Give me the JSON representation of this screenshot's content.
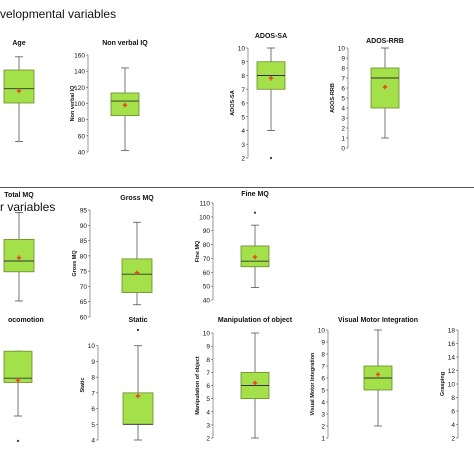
{
  "sections": [
    {
      "label": "velopmental variables"
    },
    {
      "label": "r variables"
    }
  ],
  "colors": {
    "box_fill": "#a4e04a",
    "box_stroke": "#6a8a2a",
    "mean_marker": "#e8402a",
    "text": "#111111",
    "axis": "#555555"
  },
  "chart_data": [
    {
      "type": "box",
      "title": "Age",
      "ylabel": "",
      "yticks": [],
      "ylim": [
        0,
        10
      ],
      "box": {
        "min": 1.5,
        "q1": 5.0,
        "median": 6.3,
        "q3": 8.0,
        "max": 9.2
      },
      "mean": 6.1,
      "outliers": []
    },
    {
      "type": "box",
      "title": "Non verbal IQ",
      "ylabel": "Non verbal IQ",
      "yticks": [
        40,
        60,
        80,
        100,
        120,
        140,
        160
      ],
      "ylim": [
        40,
        160
      ],
      "box": {
        "min": 42,
        "q1": 85,
        "median": 103,
        "q3": 113,
        "max": 144
      },
      "mean": 98,
      "outliers": []
    },
    {
      "type": "box",
      "title": "ADOS-SA",
      "ylabel": "ADOS-SA",
      "yticks": [
        2,
        3,
        4,
        5,
        6,
        7,
        8,
        9,
        10
      ],
      "ylim": [
        2,
        10
      ],
      "box": {
        "min": 4,
        "q1": 7,
        "median": 8,
        "q3": 9,
        "max": 10
      },
      "mean": 7.8,
      "outliers": [
        2
      ]
    },
    {
      "type": "box",
      "title": "ADOS-RRB",
      "ylabel": "ADOS-RRB",
      "yticks": [
        0,
        1,
        2,
        3,
        4,
        5,
        6,
        7,
        8,
        9,
        10
      ],
      "ylim": [
        0,
        10
      ],
      "box": {
        "min": 1,
        "q1": 4,
        "median": 7,
        "q3": 8,
        "max": 10
      },
      "mean": 6.1,
      "outliers": []
    },
    {
      "type": "box",
      "title": "Total MQ",
      "ylabel": "",
      "yticks": [],
      "ylim": [
        0,
        10
      ],
      "box": {
        "min": 1.3,
        "q1": 4.0,
        "median": 5.0,
        "q3": 7.0,
        "max": 9.5
      },
      "mean": 5.3,
      "outliers": []
    },
    {
      "type": "box",
      "title": "Gross MQ",
      "ylabel": "Gross MQ",
      "yticks": [
        60,
        65,
        70,
        75,
        80,
        85,
        90,
        95
      ],
      "ylim": [
        60,
        95
      ],
      "box": {
        "min": 64,
        "q1": 68,
        "median": 74,
        "q3": 79,
        "max": 91
      },
      "mean": 74.5,
      "outliers": []
    },
    {
      "type": "box",
      "title": "Fine MQ",
      "ylabel": "Fine MQ",
      "yticks": [
        40,
        50,
        60,
        70,
        80,
        90,
        100,
        110
      ],
      "ylim": [
        40,
        110
      ],
      "box": {
        "min": 49,
        "q1": 64,
        "median": 68,
        "q3": 79,
        "max": 94
      },
      "mean": 71,
      "outliers": [
        103
      ]
    },
    {
      "type": "box",
      "title": "ocomotion",
      "ylabel": "",
      "yticks": [],
      "ylim": [
        0,
        10
      ],
      "box": {
        "min": 2.5,
        "q1": 5.6,
        "median": 6.0,
        "q3": 8.5,
        "max": 8.5
      },
      "mean": 5.8,
      "outliers": [
        0.2
      ]
    },
    {
      "type": "box",
      "title": "Static",
      "ylabel": "Static",
      "yticks": [
        4,
        5,
        6,
        7,
        8,
        9,
        10
      ],
      "ylim": [
        4,
        11
      ],
      "box": {
        "min": 4,
        "q1": 5,
        "median": 5,
        "q3": 7,
        "max": 10
      },
      "mean": 6.8,
      "outliers": [
        11
      ]
    },
    {
      "type": "box",
      "title": "Manipulation of object",
      "ylabel": "Manipulation of object",
      "yticks": [
        2,
        3,
        4,
        5,
        6,
        7,
        8,
        9,
        10
      ],
      "ylim": [
        2,
        10
      ],
      "box": {
        "min": 2,
        "q1": 5,
        "median": 6,
        "q3": 7,
        "max": 10
      },
      "mean": 6.2,
      "outliers": []
    },
    {
      "type": "box",
      "title": "Visual Motor Integration",
      "ylabel": "Visual Motor Integration",
      "yticks": [
        1,
        2,
        3,
        4,
        5,
        6,
        7,
        8,
        9,
        10
      ],
      "ylim": [
        1,
        10
      ],
      "box": {
        "min": 2,
        "q1": 5,
        "median": 6,
        "q3": 7,
        "max": 10
      },
      "mean": 6.3,
      "outliers": []
    },
    {
      "type": "box",
      "title": "",
      "ylabel": "Grasping",
      "yticks": [
        2,
        4,
        6,
        8,
        10,
        12,
        14,
        16,
        18
      ],
      "ylim": [
        2,
        18
      ],
      "box": null,
      "mean": null,
      "outliers": []
    }
  ]
}
